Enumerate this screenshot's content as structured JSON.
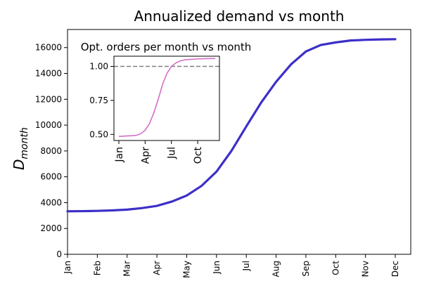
{
  "chart_data": [
    {
      "type": "line",
      "title": "Annualized demand vs month",
      "xlabel": "",
      "ylabel": {
        "base": "D",
        "subscript": "month"
      },
      "categories": [
        "Jan",
        "Feb",
        "Mar",
        "Apr",
        "May",
        "Jun",
        "Jul",
        "Aug",
        "Sep",
        "Oct",
        "Nov",
        "Dec"
      ],
      "ylim": [
        0,
        17400
      ],
      "yticks": [
        0,
        2000,
        4000,
        6000,
        8000,
        10000,
        12000,
        14000,
        16000
      ],
      "grid": false,
      "colors": {
        "line": "#3d2fc8"
      },
      "series": [
        {
          "x": [
            0,
            0.5,
            1,
            1.5,
            2,
            2.5,
            3,
            3.5,
            4,
            4.5,
            5,
            5.5,
            6,
            6.5,
            7,
            7.5,
            8,
            8.5,
            9,
            9.5,
            10,
            10.5,
            11
          ],
          "values": [
            3330,
            3340,
            3360,
            3400,
            3460,
            3580,
            3750,
            4080,
            4550,
            5300,
            6400,
            8000,
            9900,
            11750,
            13350,
            14700,
            15700,
            16200,
            16400,
            16550,
            16600,
            16630,
            16650
          ]
        }
      ]
    },
    {
      "type": "line",
      "title": "Opt. orders per month vs month",
      "xlabel": "",
      "ylabel": "",
      "xticks": [
        "Jan",
        "Apr",
        "Jul",
        "Oct"
      ],
      "yticks": [
        0.5,
        0.75,
        1.0
      ],
      "ytick_labels": [
        "0.50",
        "0.75",
        "1.00"
      ],
      "ylim": [
        0.455,
        1.075
      ],
      "reference_line": {
        "y": 1.0,
        "style": "dashed",
        "color": "#808080"
      },
      "grid": false,
      "colors": {
        "line": "#d46fc6"
      },
      "series": [
        {
          "x": [
            0,
            0.5,
            1,
            1.5,
            2,
            2.5,
            3,
            3.5,
            4,
            4.5,
            5,
            5.5,
            6,
            6.5,
            7,
            7.5,
            8,
            8.5,
            9,
            9.5,
            10,
            10.5,
            11
          ],
          "values": [
            0.485,
            0.487,
            0.489,
            0.49,
            0.493,
            0.505,
            0.53,
            0.58,
            0.66,
            0.76,
            0.87,
            0.95,
            1.0,
            1.025,
            1.04,
            1.048,
            1.051,
            1.053,
            1.055,
            1.056,
            1.057,
            1.058,
            1.058
          ]
        }
      ]
    }
  ]
}
